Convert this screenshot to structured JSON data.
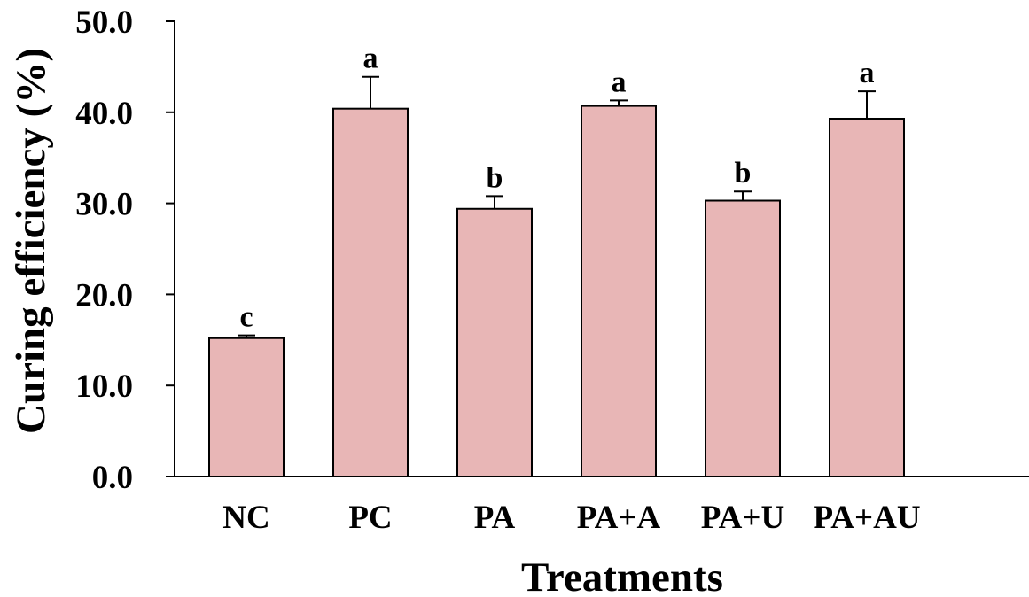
{
  "chart_data": {
    "type": "bar",
    "title": "",
    "xlabel": "Treatments",
    "ylabel": "Curing efficiency (%)",
    "ylim": [
      0,
      50
    ],
    "yticks": [
      "0.0",
      "10.0",
      "20.0",
      "30.0",
      "40.0",
      "50.0"
    ],
    "grid": false,
    "categories": [
      "NC",
      "PC",
      "PA",
      "PA+A",
      "PA+U",
      "PA+AU"
    ],
    "values": [
      15.2,
      40.4,
      29.4,
      40.7,
      30.3,
      39.3
    ],
    "errors": [
      0.3,
      3.5,
      1.4,
      0.6,
      1.0,
      3.0
    ],
    "significance": [
      "c",
      "a",
      "b",
      "a",
      "b",
      "a"
    ],
    "colors": {
      "bar_fill": "#e8b6b6",
      "bar_stroke": "#000000",
      "axis": "#000000"
    }
  }
}
